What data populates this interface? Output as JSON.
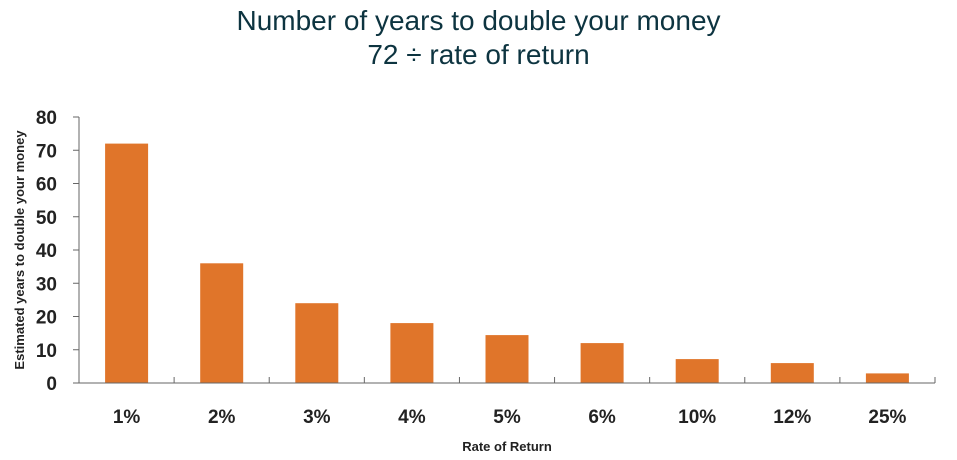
{
  "chart_data": {
    "type": "bar",
    "title": "Number of years to double your money",
    "subtitle": "72 ÷ rate of return",
    "xlabel": "Rate of Return",
    "ylabel": "Estimated years to double your money",
    "categories": [
      "1%",
      "2%",
      "3%",
      "4%",
      "5%",
      "6%",
      "10%",
      "12%",
      "25%"
    ],
    "values": [
      72,
      36,
      24,
      18,
      14.4,
      12,
      7.2,
      6,
      2.88
    ],
    "ylim": [
      0,
      80
    ],
    "yticks": [
      0,
      10,
      20,
      30,
      40,
      50,
      60,
      70,
      80
    ],
    "bar_color": "#e0752a",
    "title_color": "#0d3440",
    "grid": false,
    "legend": "none"
  }
}
